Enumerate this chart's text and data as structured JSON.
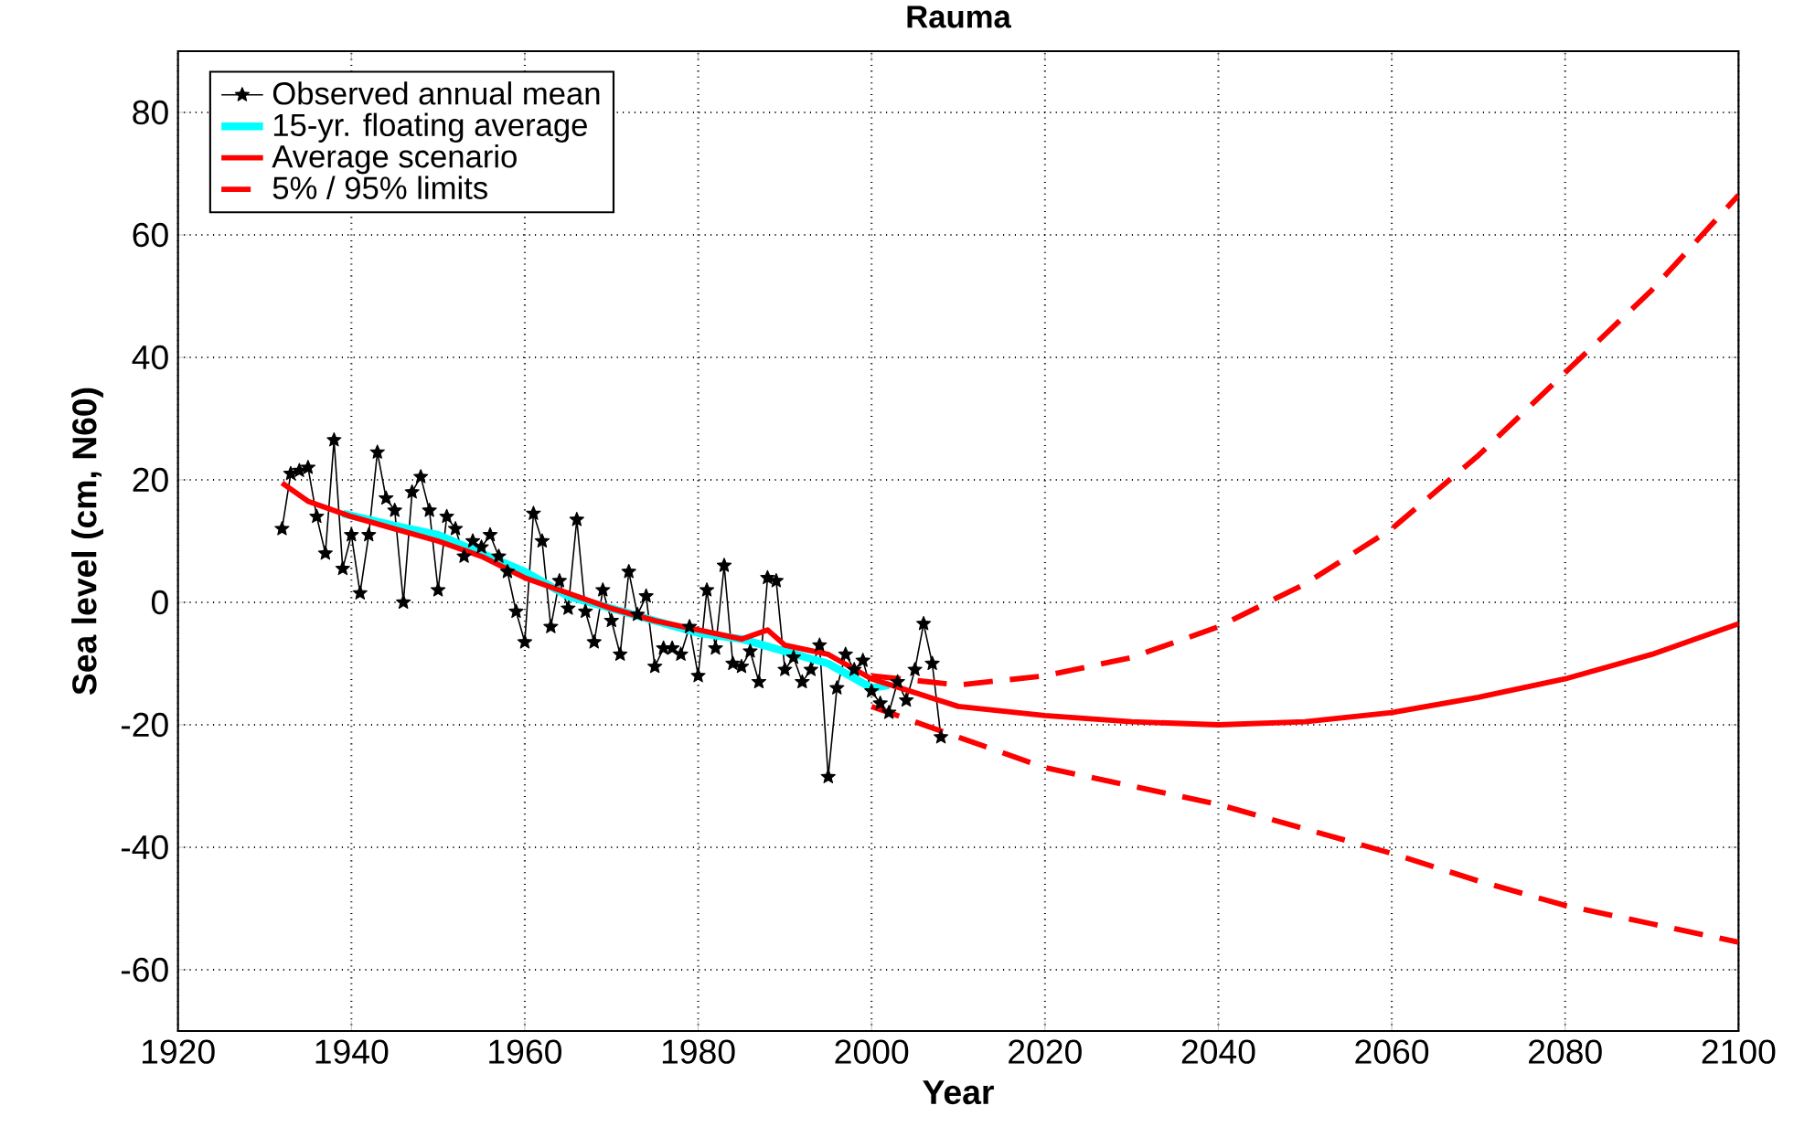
{
  "chart_data": {
    "type": "line",
    "title": "Rauma",
    "xlabel": "Year",
    "ylabel": "Sea level (cm, N60)",
    "xlim": [
      1920,
      2100
    ],
    "xticks": [
      1920,
      1940,
      1960,
      1980,
      2000,
      2020,
      2040,
      2060,
      2080,
      2100
    ],
    "ylim": [
      -70,
      90
    ],
    "yticks": [
      -60,
      -40,
      -20,
      0,
      20,
      40,
      60,
      80
    ],
    "grid": true,
    "legend": "top left",
    "series": [
      {
        "name": "Observed annual mean",
        "color": "#000000",
        "marker": "star",
        "line_style": "solid",
        "x": [
          1932,
          1933,
          1934,
          1935,
          1936,
          1937,
          1938,
          1939,
          1940,
          1941,
          1942,
          1943,
          1944,
          1945,
          1946,
          1947,
          1948,
          1949,
          1950,
          1951,
          1952,
          1953,
          1954,
          1955,
          1956,
          1957,
          1958,
          1959,
          1960,
          1961,
          1962,
          1963,
          1964,
          1965,
          1966,
          1967,
          1968,
          1969,
          1970,
          1971,
          1972,
          1973,
          1974,
          1975,
          1976,
          1977,
          1978,
          1979,
          1980,
          1981,
          1982,
          1983,
          1984,
          1985,
          1986,
          1987,
          1988,
          1989,
          1990,
          1991,
          1992,
          1993,
          1994,
          1995,
          1996,
          1997,
          1998,
          1999,
          2000,
          2001,
          2002,
          2003,
          2004,
          2005,
          2006,
          2007,
          2008
        ],
        "values": [
          12,
          21,
          21.5,
          22,
          14,
          8,
          26.5,
          5.5,
          11,
          1.5,
          11,
          24.5,
          17,
          15,
          0,
          18,
          20.5,
          15,
          2,
          14,
          12,
          7.5,
          10,
          9,
          11,
          7.5,
          5,
          -1.5,
          -6.5,
          14.5,
          10,
          -4,
          3.5,
          -1,
          13.5,
          -1.5,
          -6.5,
          2,
          -3,
          -8.5,
          5,
          -2,
          1,
          -10.5,
          -7.5,
          -7.5,
          -8.5,
          -4,
          -12,
          2,
          -7.5,
          6,
          -10,
          -10.5,
          -8,
          -13,
          4,
          3.5,
          -11,
          -9,
          -13,
          -11,
          -7,
          -28.5,
          -14,
          -8.5,
          -11,
          -9.5,
          -14.5,
          -16.5,
          -18,
          -13,
          -16,
          -11,
          -3.5,
          -10,
          -22
        ]
      },
      {
        "name": "15-yr. floating average",
        "color": "#00ffff",
        "marker": "none",
        "line_style": "solid",
        "x": [
          1939,
          1945,
          1950,
          1955,
          1960,
          1965,
          1970,
          1975,
          1980,
          1985,
          1990,
          1995,
          2000,
          2002
        ],
        "values": [
          14.5,
          12.5,
          11,
          8,
          5,
          1,
          -1,
          -3,
          -5,
          -6,
          -8,
          -10,
          -14,
          -13.5
        ]
      },
      {
        "name": "Average scenario",
        "color": "#ff0000",
        "marker": "none",
        "line_style": "solid",
        "x": [
          1932,
          1935,
          1940,
          1945,
          1950,
          1955,
          1960,
          1965,
          1970,
          1975,
          1980,
          1985,
          1988,
          1990,
          1995,
          2000,
          2010,
          2020,
          2030,
          2040,
          2050,
          2060,
          2070,
          2080,
          2090,
          2100
        ],
        "values": [
          19.5,
          16.5,
          14,
          12,
          10,
          7.5,
          4,
          1.5,
          -1,
          -3,
          -4.5,
          -6,
          -4.5,
          -7,
          -8.5,
          -12.5,
          -17,
          -18.5,
          -19.5,
          -20,
          -19.5,
          -18,
          -15.5,
          -12.5,
          -8.5,
          -3.5
        ]
      },
      {
        "name": "5% / 95% limits",
        "color": "#ff0000",
        "marker": "none",
        "line_style": "dashed",
        "x": [
          2000,
          2010,
          2020,
          2030,
          2040,
          2050,
          2060,
          2070,
          2080,
          2090,
          2100
        ],
        "values": [
          -12,
          -13.5,
          -12,
          -9,
          -4,
          3,
          12,
          24,
          37.5,
          51,
          66.5
        ]
      },
      {
        "color": "#ff0000",
        "marker": "none",
        "line_style": "dashed",
        "x": [
          2000,
          2010,
          2020,
          2030,
          2040,
          2050,
          2060,
          2070,
          2080,
          2090,
          2100
        ],
        "values": [
          -17,
          -22,
          -27,
          -30,
          -33,
          -37,
          -41,
          -45.5,
          -49.5,
          -52.5,
          -55.5
        ]
      }
    ]
  }
}
